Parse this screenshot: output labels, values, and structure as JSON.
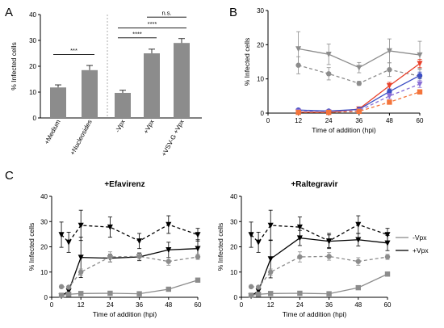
{
  "panels": [
    {
      "letter": "A"
    },
    {
      "letter": "B"
    },
    {
      "letter": "C"
    }
  ],
  "chart_data": [
    {
      "panel": "A",
      "type": "bar",
      "ylabel": "% Infected cells",
      "xlabel": "",
      "ylim": [
        0,
        40
      ],
      "yticks": [
        0,
        10,
        20,
        30,
        40
      ],
      "categories": [
        "+Medium",
        "+Nucleosides",
        "-Vpx",
        "+Vpx",
        "+VSV-G +Vpx"
      ],
      "values": [
        11.8,
        18.5,
        9.7,
        25.0,
        29.0
      ],
      "errors": [
        1.0,
        1.8,
        1.0,
        1.6,
        1.7
      ],
      "bar_color": "#8c8c8c",
      "group_divider": "dotted",
      "significance": [
        {
          "from": 0,
          "to": 1,
          "label": "***",
          "y": 24.5
        },
        {
          "from": 2,
          "to": 3,
          "label": "****",
          "y": 31.0
        },
        {
          "from": 2,
          "to": 4,
          "label": "****",
          "y": 34.8
        },
        {
          "from": 3,
          "to": 4,
          "label": "n.s.",
          "y": 39.0
        }
      ]
    },
    {
      "panel": "B",
      "type": "line",
      "ylabel": "% Infected cells",
      "xlabel": "Time of addition (hpi)",
      "xlim": [
        0,
        60
      ],
      "ylim": [
        0,
        30
      ],
      "xticks": [
        0,
        12,
        24,
        36,
        48,
        60
      ],
      "yticks": [
        0,
        10,
        20,
        30
      ],
      "series": [
        {
          "color": "#8c8c8c",
          "dash": false,
          "marker": "triangle-down",
          "x": [
            12,
            24,
            36,
            48,
            60
          ],
          "y": [
            18.8,
            17.2,
            13.3,
            18.2,
            17.0
          ],
          "err": [
            5.0,
            3.0,
            1.5,
            3.5,
            4.0
          ]
        },
        {
          "color": "#8c8c8c",
          "dash": true,
          "marker": "circle",
          "x": [
            12,
            24,
            36,
            48,
            60
          ],
          "y": [
            14.0,
            11.5,
            8.7,
            12.7,
            10.8
          ],
          "err": [
            2.5,
            1.8,
            0.6,
            2.0,
            2.0
          ]
        },
        {
          "color": "#e8412b",
          "dash": false,
          "marker": "triangle-down",
          "x": [
            12,
            24,
            36,
            48,
            60
          ],
          "y": [
            0.3,
            0.2,
            1.2,
            8.0,
            14.5
          ],
          "err": [
            0.2,
            0.2,
            0.3,
            1.0,
            1.2
          ]
        },
        {
          "color": "#3d4fc4",
          "dash": false,
          "marker": "circle",
          "x": [
            12,
            24,
            36,
            48,
            60
          ],
          "y": [
            0.9,
            0.6,
            1.1,
            6.3,
            11.0
          ],
          "err": [
            0.3,
            0.2,
            0.3,
            0.8,
            1.0
          ]
        },
        {
          "color": "#8a6fd6",
          "dash": true,
          "marker": "triangle-down",
          "x": [
            12,
            24,
            36,
            48,
            60
          ],
          "y": [
            0.5,
            0.3,
            0.7,
            5.0,
            8.5
          ],
          "err": [
            0.2,
            0.2,
            0.2,
            0.8,
            1.0
          ]
        },
        {
          "color": "#f4743b",
          "dash": true,
          "marker": "square",
          "x": [
            12,
            24,
            36,
            48,
            60
          ],
          "y": [
            0.2,
            0.2,
            0.5,
            3.2,
            6.2
          ],
          "err": [
            0.1,
            0.1,
            0.2,
            0.5,
            0.6
          ]
        }
      ]
    },
    {
      "panel": "C",
      "type": "line",
      "title": "+Efavirenz",
      "ylabel": "% Infected cells",
      "xlabel": "Time of addition (hpi)",
      "xlim": [
        0,
        60
      ],
      "ylim": [
        0,
        40
      ],
      "xticks": [
        0,
        12,
        24,
        36,
        48,
        60
      ],
      "yticks": [
        0,
        10,
        20,
        30,
        40
      ],
      "series": [
        {
          "color": "#000000",
          "dash": true,
          "marker": "triangle-down",
          "x": [
            4,
            7,
            12,
            24,
            36,
            48,
            60
          ],
          "y": [
            24.8,
            21.8,
            28.5,
            27.8,
            22.3,
            28.8,
            24.8
          ],
          "err": [
            5.0,
            4.0,
            6.0,
            4.0,
            3.0,
            3.5,
            2.5
          ]
        },
        {
          "color": "#000000",
          "dash": false,
          "marker": "triangle-down",
          "x": [
            4,
            7,
            12,
            24,
            36,
            48,
            60
          ],
          "y": [
            0.5,
            2.5,
            15.8,
            15.5,
            16.0,
            18.8,
            19.3
          ],
          "err": [
            0.3,
            1.0,
            8.0,
            1.5,
            1.5,
            3.0,
            3.5
          ]
        },
        {
          "color": "#8c8c8c",
          "dash": true,
          "marker": "circle",
          "x": [
            4,
            7,
            12,
            24,
            36,
            48,
            60
          ],
          "y": [
            4.2,
            4.0,
            10.0,
            16.0,
            16.2,
            14.2,
            16.0
          ],
          "err": [
            0.3,
            0.3,
            1.2,
            2.0,
            1.5,
            1.5,
            1.0
          ]
        },
        {
          "color": "#8c8c8c",
          "dash": false,
          "marker": "square",
          "x": [
            4,
            7,
            12,
            24,
            36,
            48,
            60
          ],
          "y": [
            0.8,
            1.2,
            1.5,
            1.6,
            1.4,
            3.2,
            6.8
          ],
          "err": [
            0.2,
            0.3,
            0.4,
            0.3,
            0.3,
            0.6,
            0.6
          ]
        }
      ]
    },
    {
      "panel": "C",
      "type": "line",
      "title": "+Raltegravir",
      "ylabel": "% Infected cells",
      "xlabel": "Time of addition (hpi)",
      "xlim": [
        0,
        60
      ],
      "ylim": [
        0,
        40
      ],
      "xticks": [
        0,
        12,
        24,
        36,
        48,
        60
      ],
      "yticks": [
        0,
        10,
        20,
        30,
        40
      ],
      "series": [
        {
          "color": "#000000",
          "dash": true,
          "marker": "triangle-down",
          "x": [
            4,
            7,
            12,
            24,
            36,
            48,
            60
          ],
          "y": [
            24.8,
            21.8,
            28.5,
            27.8,
            22.3,
            28.8,
            24.8
          ],
          "err": [
            5.0,
            4.0,
            6.0,
            4.0,
            3.0,
            3.5,
            2.5
          ]
        },
        {
          "color": "#000000",
          "dash": false,
          "marker": "triangle-down",
          "x": [
            4,
            7,
            12,
            24,
            36,
            48,
            60
          ],
          "y": [
            0.5,
            2.5,
            15.2,
            23.5,
            22.2,
            22.8,
            21.5
          ],
          "err": [
            0.3,
            1.0,
            7.5,
            3.0,
            2.5,
            2.5,
            3.0
          ]
        },
        {
          "color": "#8c8c8c",
          "dash": true,
          "marker": "circle",
          "x": [
            4,
            7,
            12,
            24,
            36,
            48,
            60
          ],
          "y": [
            4.2,
            4.0,
            10.0,
            16.0,
            16.2,
            14.2,
            16.0
          ],
          "err": [
            0.3,
            0.3,
            1.2,
            2.0,
            1.5,
            1.5,
            1.0
          ]
        },
        {
          "color": "#8c8c8c",
          "dash": false,
          "marker": "square",
          "x": [
            4,
            7,
            12,
            24,
            36,
            48,
            60
          ],
          "y": [
            0.8,
            1.2,
            1.5,
            1.6,
            1.4,
            3.8,
            9.2
          ],
          "err": [
            0.2,
            0.3,
            0.4,
            0.3,
            0.3,
            0.6,
            0.8
          ]
        }
      ]
    }
  ],
  "legend_c": {
    "placement": "right",
    "entries": [
      {
        "label": "-Vpx",
        "color": "#8c8c8c"
      },
      {
        "label": "+Vpx",
        "color": "#000000"
      }
    ]
  }
}
